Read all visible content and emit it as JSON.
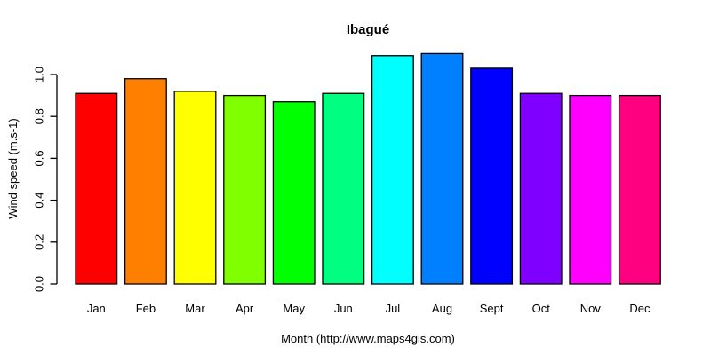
{
  "chart_data": {
    "type": "bar",
    "title": "Ibagué",
    "xlabel": "Month (http://www.maps4gis.com)",
    "ylabel": "Wind speed (m.s-1)",
    "categories": [
      "Jan",
      "Feb",
      "Mar",
      "Apr",
      "May",
      "Jun",
      "Jul",
      "Aug",
      "Sept",
      "Oct",
      "Nov",
      "Dec"
    ],
    "values": [
      0.91,
      0.98,
      0.92,
      0.9,
      0.87,
      0.91,
      1.09,
      1.1,
      1.03,
      0.91,
      0.9,
      0.9
    ],
    "bar_colors": [
      "#FF0000",
      "#FF8000",
      "#FFFF00",
      "#80FF00",
      "#00FF00",
      "#00FF80",
      "#00FFFF",
      "#0080FF",
      "#0000FF",
      "#8000FF",
      "#FF00FF",
      "#FF0080"
    ],
    "bar_border_color": "#000000",
    "yticks": [
      "0.0",
      "0.2",
      "0.4",
      "0.6",
      "0.8",
      "1.0"
    ],
    "ytick_values": [
      0.0,
      0.2,
      0.4,
      0.6,
      0.8,
      1.0
    ],
    "ylim": [
      0,
      1.1
    ],
    "grid": false,
    "legend": false,
    "background_color": "#FFFFFF",
    "text_color": "#000000"
  }
}
